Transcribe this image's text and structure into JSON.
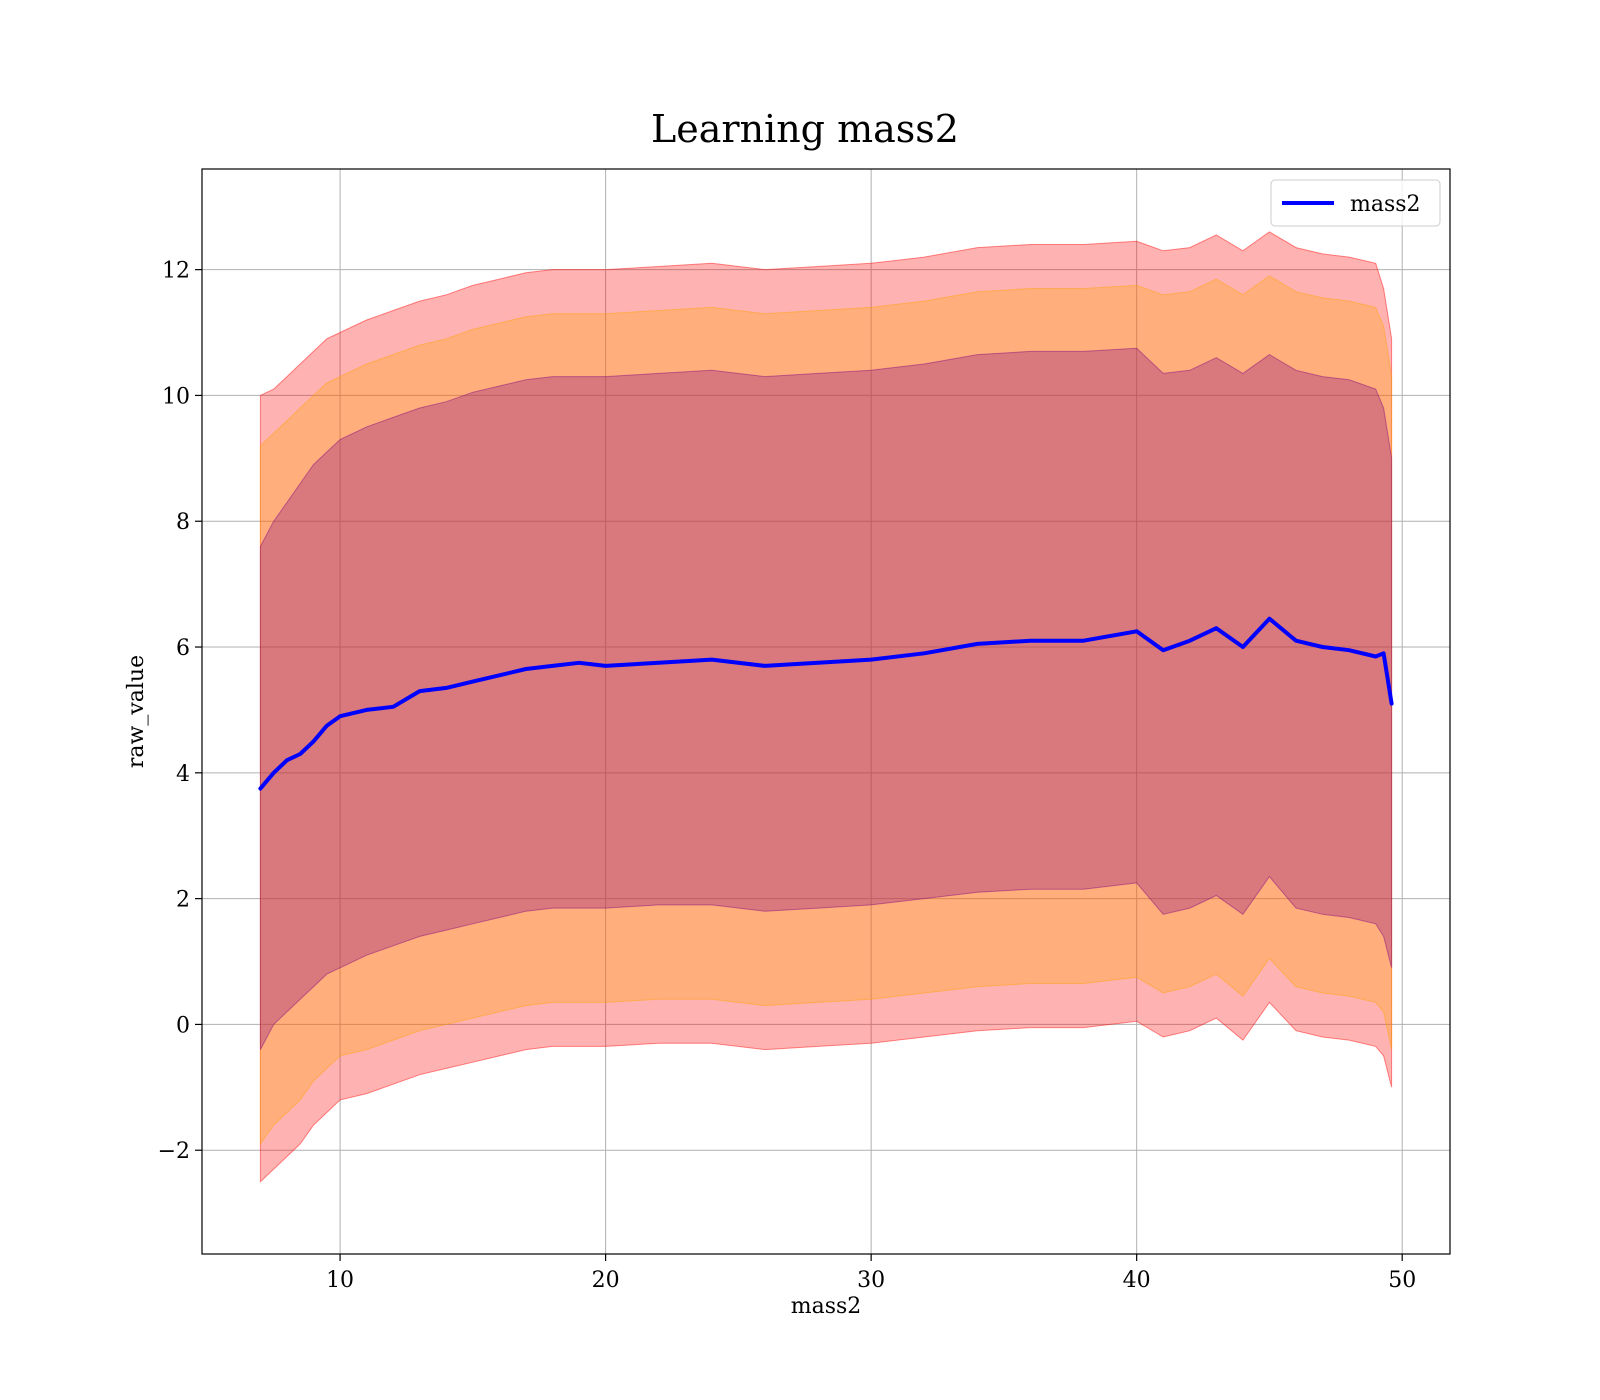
{
  "chart_data": {
    "type": "line",
    "title": "Learning mass2",
    "xlabel": "mass2",
    "ylabel": "raw_value",
    "xlim": [
      4.8,
      51.8
    ],
    "ylim": [
      -3.65,
      13.6
    ],
    "xticks": [
      10,
      20,
      30,
      40,
      50
    ],
    "yticks": [
      -2,
      0,
      2,
      4,
      6,
      8,
      10,
      12
    ],
    "xtick_labels": [
      "10",
      "20",
      "30",
      "40",
      "50"
    ],
    "ytick_labels": [
      "−2",
      "0",
      "2",
      "4",
      "6",
      "8",
      "10",
      "12"
    ],
    "grid": true,
    "legend": {
      "position": "top-right",
      "entries": [
        "mass2"
      ]
    },
    "x": [
      7.0,
      7.5,
      8.0,
      8.5,
      9.0,
      9.5,
      10.0,
      11.0,
      12.0,
      13.0,
      14.0,
      15.0,
      16.0,
      17.0,
      18.0,
      19.0,
      20.0,
      22.0,
      24.0,
      26.0,
      28.0,
      30.0,
      32.0,
      34.0,
      36.0,
      38.0,
      40.0,
      41.0,
      42.0,
      43.0,
      44.0,
      45.0,
      46.0,
      47.0,
      48.0,
      49.0,
      49.3,
      49.6
    ],
    "series": [
      {
        "name": "mass2",
        "color": "#0000ff",
        "values": [
          3.75,
          4.0,
          4.2,
          4.3,
          4.5,
          4.75,
          4.9,
          5.0,
          5.05,
          5.3,
          5.35,
          5.45,
          5.55,
          5.65,
          5.7,
          5.75,
          5.7,
          5.75,
          5.8,
          5.7,
          5.75,
          5.8,
          5.9,
          6.05,
          6.1,
          6.1,
          6.25,
          5.95,
          6.1,
          6.3,
          6.0,
          6.45,
          6.1,
          6.0,
          5.95,
          5.85,
          5.9,
          5.1
        ]
      }
    ],
    "bands": [
      {
        "role": "outer",
        "color": "#ff0000",
        "opacity": 0.3,
        "upper": [
          10.0,
          10.1,
          10.3,
          10.5,
          10.7,
          10.9,
          11.0,
          11.2,
          11.35,
          11.5,
          11.6,
          11.75,
          11.85,
          11.95,
          12.0,
          12.0,
          12.0,
          12.05,
          12.1,
          12.0,
          12.05,
          12.1,
          12.2,
          12.35,
          12.4,
          12.4,
          12.45,
          12.3,
          12.35,
          12.55,
          12.3,
          12.6,
          12.35,
          12.25,
          12.2,
          12.1,
          11.7,
          10.9
        ],
        "lower": [
          -2.5,
          -2.3,
          -2.1,
          -1.9,
          -1.6,
          -1.4,
          -1.2,
          -1.1,
          -0.95,
          -0.8,
          -0.7,
          -0.6,
          -0.5,
          -0.4,
          -0.35,
          -0.35,
          -0.35,
          -0.3,
          -0.3,
          -0.4,
          -0.35,
          -0.3,
          -0.2,
          -0.1,
          -0.05,
          -0.05,
          0.05,
          -0.2,
          -0.1,
          0.1,
          -0.25,
          0.35,
          -0.1,
          -0.2,
          -0.25,
          -0.35,
          -0.5,
          -1.0
        ]
      },
      {
        "role": "middle",
        "color": "#ffa500",
        "opacity": 0.3,
        "upper": [
          9.2,
          9.4,
          9.6,
          9.8,
          10.0,
          10.2,
          10.3,
          10.5,
          10.65,
          10.8,
          10.9,
          11.05,
          11.15,
          11.25,
          11.3,
          11.3,
          11.3,
          11.35,
          11.4,
          11.3,
          11.35,
          11.4,
          11.5,
          11.65,
          11.7,
          11.7,
          11.75,
          11.6,
          11.65,
          11.85,
          11.6,
          11.9,
          11.65,
          11.55,
          11.5,
          11.4,
          11.1,
          10.3
        ],
        "lower": [
          -1.9,
          -1.6,
          -1.4,
          -1.2,
          -0.9,
          -0.7,
          -0.5,
          -0.4,
          -0.25,
          -0.1,
          0.0,
          0.1,
          0.2,
          0.3,
          0.35,
          0.35,
          0.35,
          0.4,
          0.4,
          0.3,
          0.35,
          0.4,
          0.5,
          0.6,
          0.65,
          0.65,
          0.75,
          0.5,
          0.6,
          0.8,
          0.45,
          1.05,
          0.6,
          0.5,
          0.45,
          0.35,
          0.2,
          -0.4
        ]
      },
      {
        "role": "inner",
        "color": "#800080",
        "opacity": 0.3,
        "upper": [
          7.6,
          8.0,
          8.3,
          8.6,
          8.9,
          9.1,
          9.3,
          9.5,
          9.65,
          9.8,
          9.9,
          10.05,
          10.15,
          10.25,
          10.3,
          10.3,
          10.3,
          10.35,
          10.4,
          10.3,
          10.35,
          10.4,
          10.5,
          10.65,
          10.7,
          10.7,
          10.75,
          10.35,
          10.4,
          10.6,
          10.35,
          10.65,
          10.4,
          10.3,
          10.25,
          10.1,
          9.8,
          9.0
        ],
        "lower": [
          -0.4,
          0.0,
          0.2,
          0.4,
          0.6,
          0.8,
          0.9,
          1.1,
          1.25,
          1.4,
          1.5,
          1.6,
          1.7,
          1.8,
          1.85,
          1.85,
          1.85,
          1.9,
          1.9,
          1.8,
          1.85,
          1.9,
          2.0,
          2.1,
          2.15,
          2.15,
          2.25,
          1.75,
          1.85,
          2.05,
          1.75,
          2.35,
          1.85,
          1.75,
          1.7,
          1.6,
          1.4,
          0.9
        ]
      }
    ]
  }
}
